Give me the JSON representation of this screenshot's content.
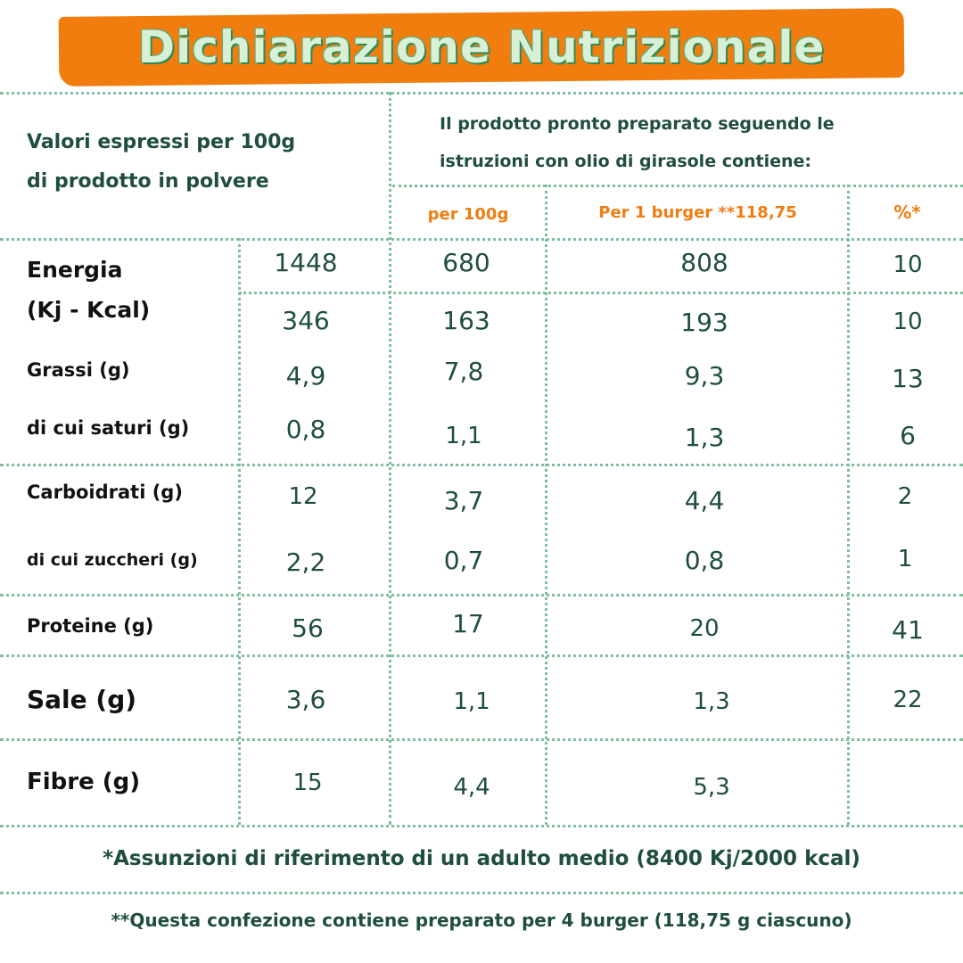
{
  "title": "Dichiarazione Nutrizionale",
  "header": {
    "left": [
      "Valori espressi per 100g",
      "di prodotto in polvere"
    ],
    "right": [
      "Il prodotto pronto preparato seguendo le",
      "istruzioni con olio di girasole contiene:"
    ],
    "col_per100g": "per 100g",
    "col_per_burger": "Per 1 burger **118,75",
    "col_percent": "%*"
  },
  "rows": [
    {
      "label": "Energia",
      "powder": "1448",
      "per100": "680",
      "burger": "808",
      "pct": "10"
    },
    {
      "label": "(Kj - Kcal)",
      "powder": "346",
      "per100": "163",
      "burger": "193",
      "pct": "10"
    },
    {
      "label": "Grassi (g)",
      "powder": "4,9",
      "per100": "7,8",
      "burger": "9,3",
      "pct": "13"
    },
    {
      "label": "di cui saturi (g)",
      "powder": "0,8",
      "per100": "1,1",
      "burger": "1,3",
      "pct": "6"
    },
    {
      "label": "Carboidrati (g)",
      "powder": "12",
      "per100": "3,7",
      "burger": "4,4",
      "pct": "2"
    },
    {
      "label": "di cui zuccheri (g)",
      "powder": "2,2",
      "per100": "0,7",
      "burger": "0,8",
      "pct": "1"
    },
    {
      "label": "Proteine (g)",
      "powder": "56",
      "per100": "17",
      "burger": "20",
      "pct": "41"
    },
    {
      "label": "Sale (g)",
      "powder": "3,6",
      "per100": "1,1",
      "burger": "1,3",
      "pct": "22"
    },
    {
      "label": "Fibre (g)",
      "powder": "15",
      "per100": "4,4",
      "burger": "5,3",
      "pct": ""
    }
  ],
  "footnote1": "*Assunzioni di riferimento di un adulto medio (8400 Kj/2000 kcal)",
  "footnote2": "**Questa confezione contiene preparato per 4 burger  (118,75 g ciascuno)",
  "colors": {
    "orange": "#f07d0d",
    "green_text": "#1f4d40",
    "dots": "#7fbf9c"
  }
}
